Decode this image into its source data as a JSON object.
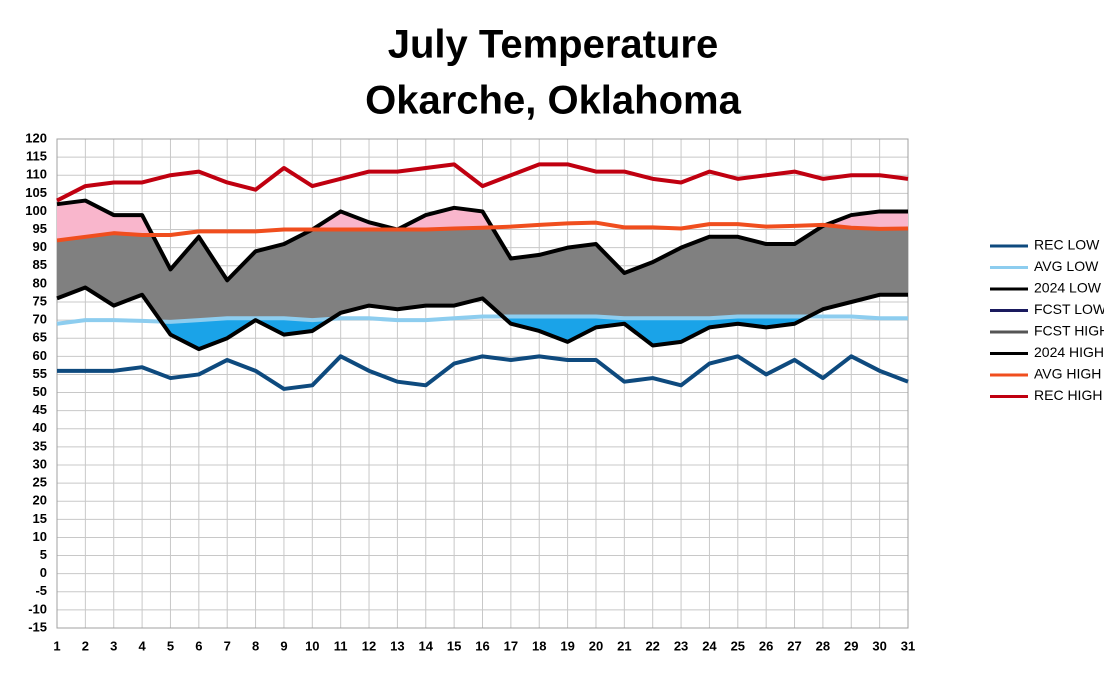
{
  "chart_data": {
    "type": "line",
    "title": "July Temperature",
    "subtitle": "Okarche, Oklahoma",
    "x": [
      1,
      2,
      3,
      4,
      5,
      6,
      7,
      8,
      9,
      10,
      11,
      12,
      13,
      14,
      15,
      16,
      17,
      18,
      19,
      20,
      21,
      22,
      23,
      24,
      25,
      26,
      27,
      28,
      29,
      30,
      31
    ],
    "xlim": [
      1,
      31
    ],
    "xticks": [
      1,
      2,
      3,
      4,
      5,
      6,
      7,
      8,
      9,
      10,
      11,
      12,
      13,
      14,
      15,
      16,
      17,
      18,
      19,
      20,
      21,
      22,
      23,
      24,
      25,
      26,
      27,
      28,
      29,
      30,
      31
    ],
    "ylim": [
      -15,
      120
    ],
    "yticks": [
      -15,
      -10,
      -5,
      0,
      5,
      10,
      15,
      20,
      25,
      30,
      35,
      40,
      45,
      50,
      55,
      60,
      65,
      70,
      75,
      80,
      85,
      90,
      95,
      100,
      105,
      110,
      115,
      120
    ],
    "grid": true,
    "legend": "right",
    "series": [
      {
        "name": "REC LOW",
        "color": "#0e4a7e",
        "values": [
          56,
          56,
          56,
          57,
          54,
          55,
          59,
          56,
          51,
          52,
          60,
          56,
          53,
          52,
          58,
          60,
          59,
          60,
          59,
          59,
          53,
          54,
          52,
          58,
          60,
          55,
          59,
          54,
          60,
          56,
          53
        ]
      },
      {
        "name": "AVG LOW",
        "color": "#8dcdef",
        "values": [
          69,
          70,
          70,
          69.8,
          69.5,
          70,
          70.5,
          70.5,
          70.5,
          70,
          70.5,
          70.5,
          70,
          70,
          70.5,
          71,
          71,
          71,
          71,
          71,
          70.5,
          70.5,
          70.5,
          70.5,
          71,
          71,
          71,
          71,
          71,
          70.5,
          70.5
        ]
      },
      {
        "name": "2024 LOW",
        "color": "#000000",
        "values": [
          76,
          79,
          74,
          77,
          66,
          62,
          65,
          70,
          66,
          67,
          72,
          74,
          73,
          74,
          74,
          76,
          69,
          67,
          64,
          68,
          69,
          63,
          64,
          68,
          69,
          68,
          69,
          73,
          75,
          77,
          77
        ]
      },
      {
        "name": "FCST LOW",
        "color": "#1a1a5e",
        "values": [
          null,
          null,
          null,
          null,
          null,
          null,
          null,
          null,
          null,
          null,
          null,
          null,
          null,
          null,
          null,
          null,
          null,
          null,
          null,
          null,
          null,
          null,
          null,
          null,
          null,
          null,
          null,
          null,
          null,
          null,
          null
        ]
      },
      {
        "name": "FCST HIGH",
        "color": "#555555",
        "values": [
          null,
          null,
          null,
          null,
          null,
          null,
          null,
          null,
          null,
          null,
          null,
          null,
          null,
          null,
          null,
          null,
          null,
          null,
          null,
          null,
          null,
          null,
          null,
          null,
          null,
          null,
          null,
          null,
          null,
          null,
          null
        ]
      },
      {
        "name": "2024 HIGH",
        "color": "#000000",
        "values": [
          102,
          103,
          99,
          99,
          84,
          93,
          81,
          89,
          91,
          95,
          100,
          97,
          95,
          99,
          101,
          100,
          87,
          88,
          90,
          91,
          83,
          86,
          90,
          93,
          93,
          91,
          91,
          96,
          99,
          100,
          100
        ]
      },
      {
        "name": "AVG HIGH",
        "color": "#f04e1e",
        "values": [
          92,
          93,
          94,
          93.5,
          93.5,
          94.5,
          94.5,
          94.5,
          95,
          95,
          95,
          95,
          95,
          95,
          95.3,
          95.5,
          95.8,
          96.3,
          96.7,
          96.9,
          95.6,
          95.6,
          95.3,
          96.5,
          96.5,
          95.8,
          96,
          96.3,
          95.5,
          95.2,
          95.3
        ]
      },
      {
        "name": "REC HIGH",
        "color": "#c00010",
        "values": [
          103,
          107,
          108,
          108,
          110,
          111,
          108,
          106,
          112,
          107,
          109,
          111,
          111,
          112,
          113,
          107,
          110,
          113,
          113,
          111,
          111,
          109,
          108,
          111,
          109,
          110,
          111,
          109,
          110,
          110,
          109
        ]
      }
    ]
  }
}
